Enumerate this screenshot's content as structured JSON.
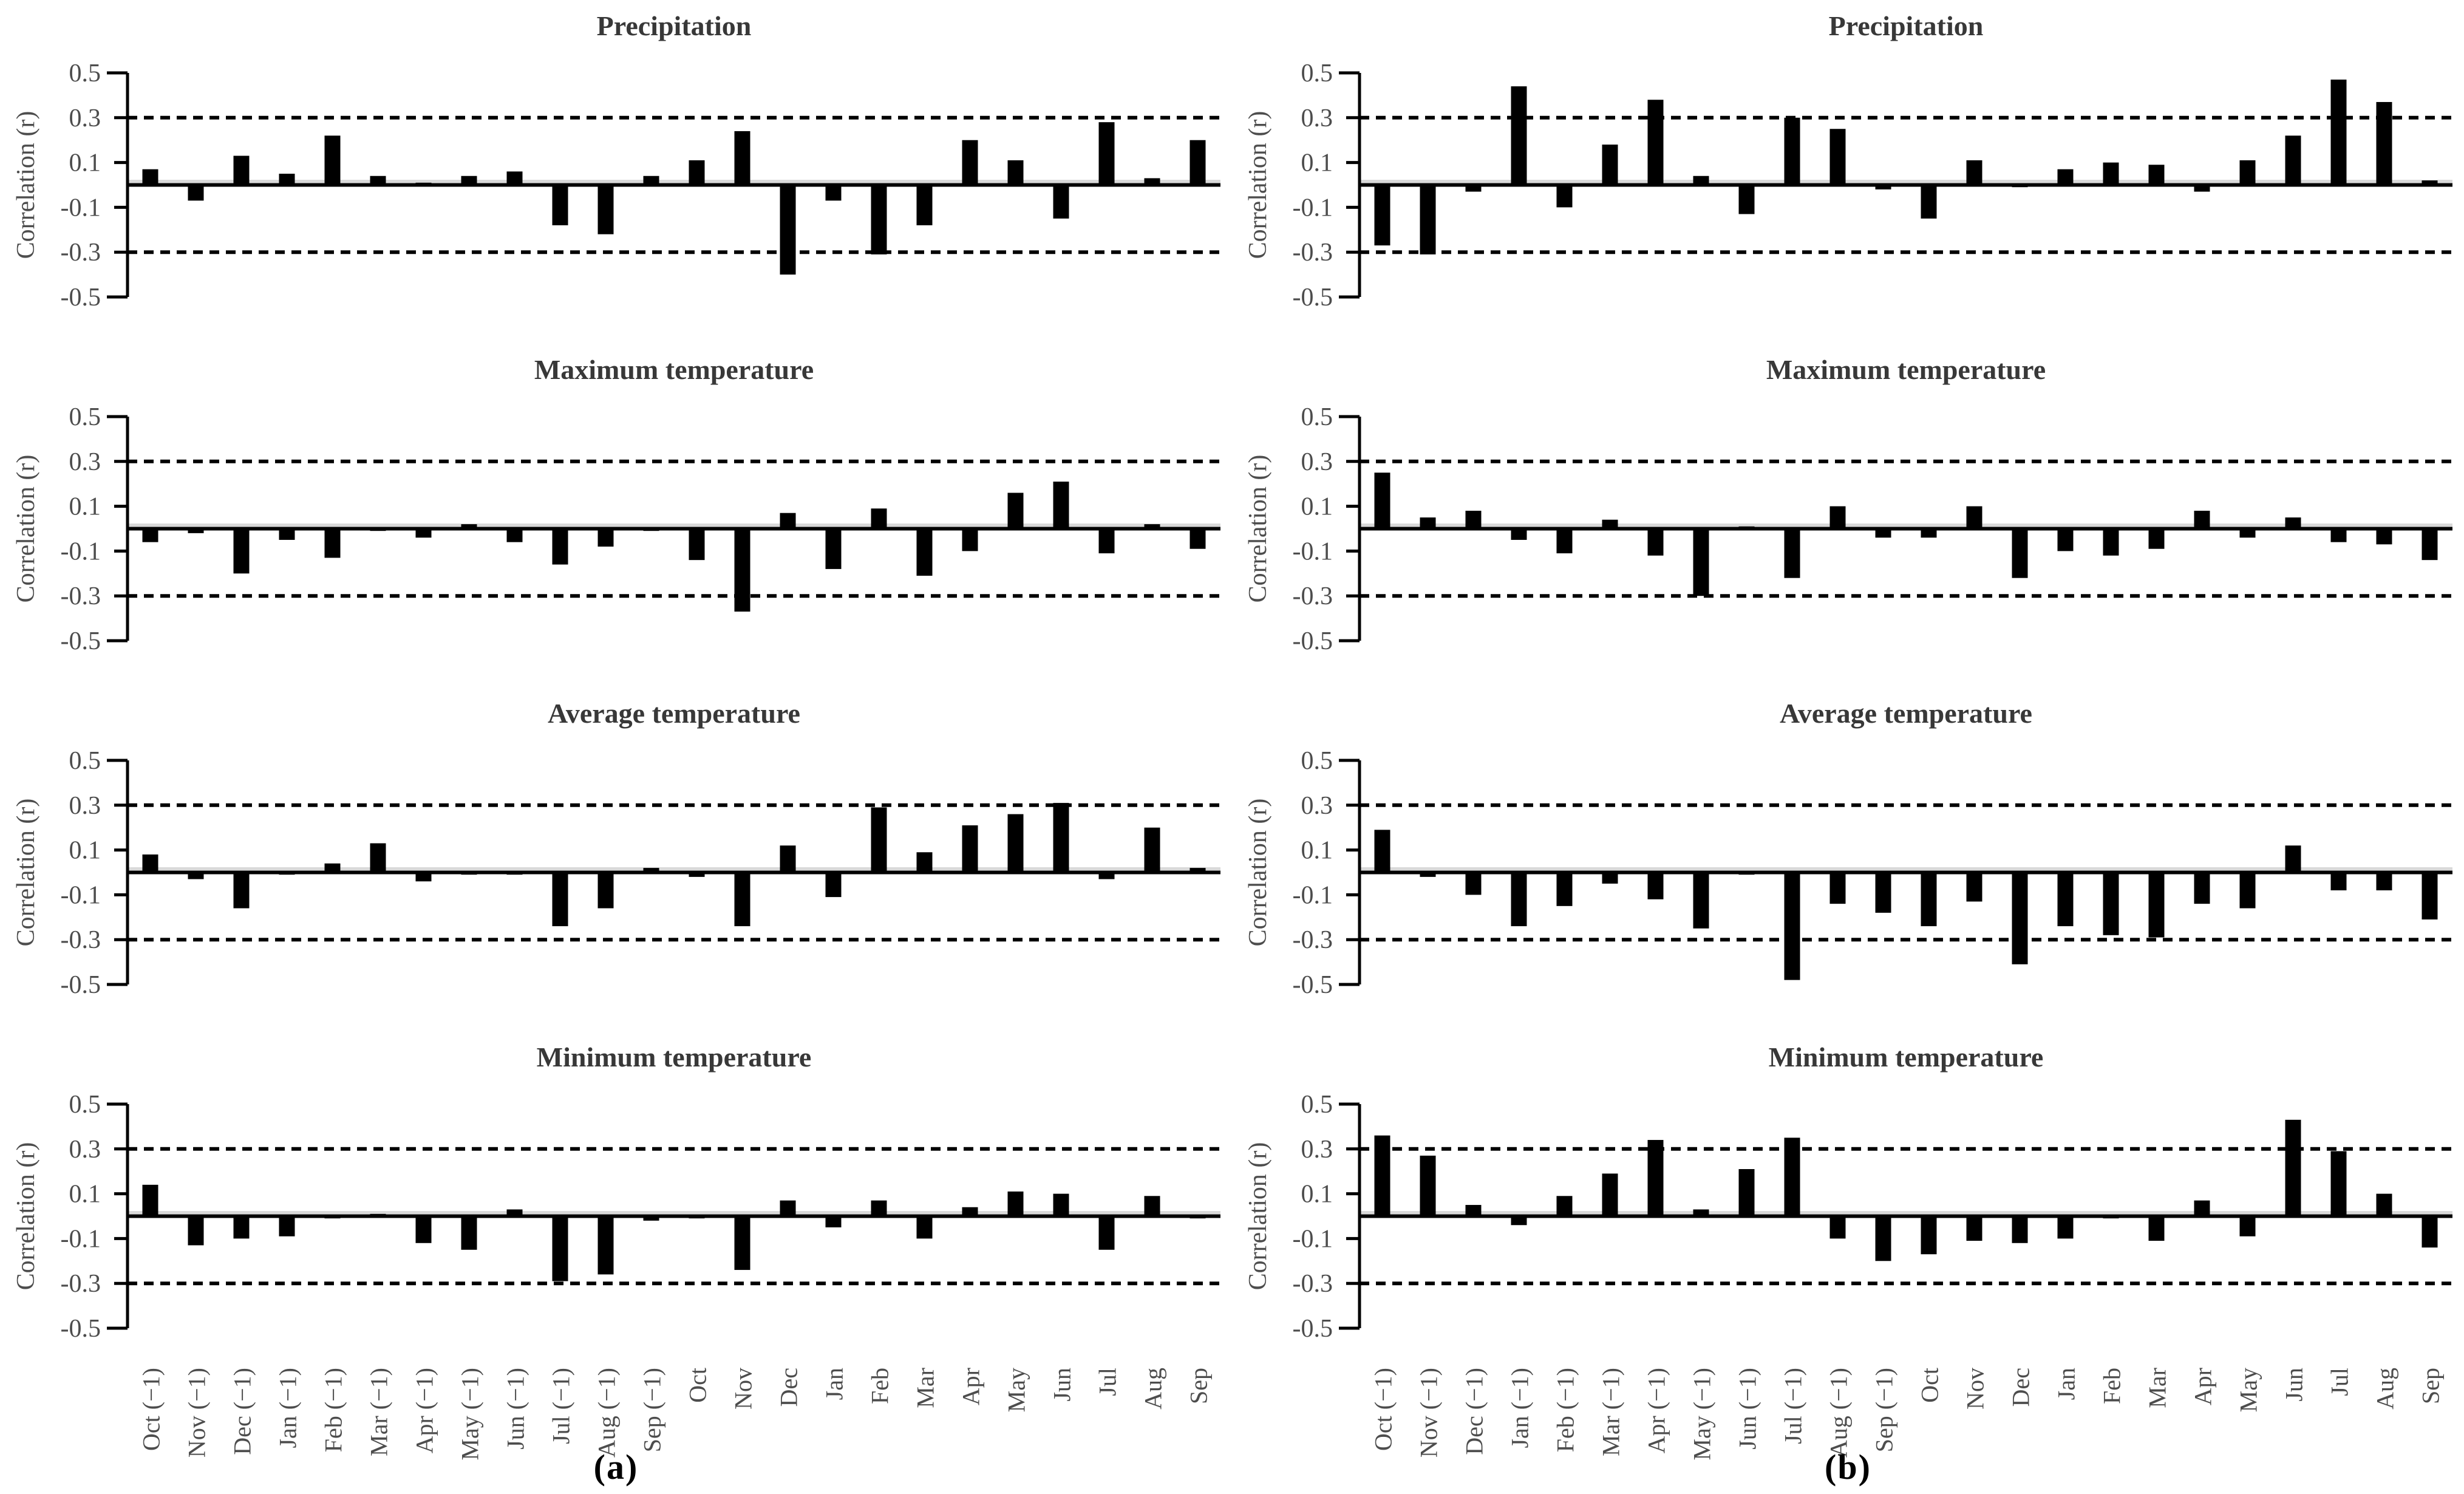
{
  "figure": {
    "y_axis_label": "Correlation (r)",
    "column_labels": [
      "(a)",
      "(b)"
    ],
    "colors": {
      "bar": "#000000",
      "axis": "#000000",
      "tick_text": "#4d4d4d",
      "title_text": "#383838",
      "zero_shadow": "#d9d9d9"
    }
  },
  "chart_data": [
    {
      "type": "bar",
      "panel": "a",
      "row": 0,
      "col": 0,
      "title": "Precipitation",
      "xlabel": "",
      "ylabel": "Correlation (r)",
      "ylim": [
        -0.5,
        0.5
      ],
      "y_ticks": [
        0.5,
        0.3,
        0.1,
        -0.1,
        -0.3,
        -0.5
      ],
      "y_tick_labels": [
        "0.5",
        "0.3",
        "0.1",
        "-0.1",
        "-0.3",
        "-0.5"
      ],
      "significance_lines": [
        0.3,
        -0.3
      ],
      "grid": false,
      "categories": [
        "Oct (−1)",
        "Nov (−1)",
        "Dec (−1)",
        "Jan (−1)",
        "Feb (−1)",
        "Mar (−1)",
        "Apr (−1)",
        "May (−1)",
        "Jun (−1)",
        "Jul (−1)",
        "Aug (−1)",
        "Sep (−1)",
        "Oct",
        "Nov",
        "Dec",
        "Jan",
        "Feb",
        "Mar",
        "Apr",
        "May",
        "Jun",
        "Jul",
        "Aug",
        "Sep"
      ],
      "values": [
        0.07,
        -0.07,
        0.13,
        0.05,
        0.22,
        0.04,
        0.01,
        0.04,
        0.06,
        -0.18,
        -0.22,
        0.04,
        0.11,
        0.24,
        -0.4,
        -0.07,
        -0.31,
        -0.18,
        0.2,
        0.11,
        -0.15,
        0.28,
        0.03,
        0.2
      ]
    },
    {
      "type": "bar",
      "panel": "b",
      "row": 0,
      "col": 1,
      "title": "Precipitation",
      "xlabel": "",
      "ylabel": "Correlation (r)",
      "ylim": [
        -0.5,
        0.5
      ],
      "y_ticks": [
        0.5,
        0.3,
        0.1,
        -0.1,
        -0.3,
        -0.5
      ],
      "y_tick_labels": [
        "0.5",
        "0.3",
        "0.1",
        "-0.1",
        "-0.3",
        "-0.5"
      ],
      "significance_lines": [
        0.3,
        -0.3
      ],
      "grid": false,
      "categories": [
        "Oct (−1)",
        "Nov (−1)",
        "Dec (−1)",
        "Jan (−1)",
        "Feb (−1)",
        "Mar (−1)",
        "Apr (−1)",
        "May (−1)",
        "Jun (−1)",
        "Jul (−1)",
        "Aug (−1)",
        "Sep (−1)",
        "Oct",
        "Nov",
        "Dec",
        "Jan",
        "Feb",
        "Mar",
        "Apr",
        "May",
        "Jun",
        "Jul",
        "Aug",
        "Sep"
      ],
      "values": [
        -0.27,
        -0.31,
        -0.03,
        0.44,
        -0.1,
        0.18,
        0.38,
        0.04,
        -0.13,
        0.3,
        0.25,
        -0.02,
        -0.15,
        0.11,
        -0.01,
        0.07,
        0.1,
        0.09,
        -0.03,
        0.11,
        0.22,
        0.47,
        0.37,
        0.02
      ]
    },
    {
      "type": "bar",
      "panel": "a",
      "row": 1,
      "col": 0,
      "title": "Maximum temperature",
      "xlabel": "",
      "ylabel": "Correlation (r)",
      "ylim": [
        -0.5,
        0.5
      ],
      "y_ticks": [
        0.5,
        0.3,
        0.1,
        -0.1,
        -0.3,
        -0.5
      ],
      "y_tick_labels": [
        "0.5",
        "0.3",
        "0.1",
        "-0.1",
        "-0.3",
        "-0.5"
      ],
      "significance_lines": [
        0.3,
        -0.3
      ],
      "grid": false,
      "categories": [
        "Oct (−1)",
        "Nov (−1)",
        "Dec (−1)",
        "Jan (−1)",
        "Feb (−1)",
        "Mar (−1)",
        "Apr (−1)",
        "May (−1)",
        "Jun (−1)",
        "Jul (−1)",
        "Aug (−1)",
        "Sep (−1)",
        "Oct",
        "Nov",
        "Dec",
        "Jan",
        "Feb",
        "Mar",
        "Apr",
        "May",
        "Jun",
        "Jul",
        "Aug",
        "Sep"
      ],
      "values": [
        -0.06,
        -0.02,
        -0.2,
        -0.05,
        -0.13,
        -0.01,
        -0.04,
        0.02,
        -0.06,
        -0.16,
        -0.08,
        -0.01,
        -0.14,
        -0.37,
        0.07,
        -0.18,
        0.09,
        -0.21,
        -0.1,
        0.16,
        0.21,
        -0.11,
        0.02,
        -0.09
      ]
    },
    {
      "type": "bar",
      "panel": "b",
      "row": 1,
      "col": 1,
      "title": "Maximum temperature",
      "xlabel": "",
      "ylabel": "Correlation (r)",
      "ylim": [
        -0.5,
        0.5
      ],
      "y_ticks": [
        0.5,
        0.3,
        0.1,
        -0.1,
        -0.3,
        -0.5
      ],
      "y_tick_labels": [
        "0.5",
        "0.3",
        "0.1",
        "-0.1",
        "-0.3",
        "-0.5"
      ],
      "significance_lines": [
        0.3,
        -0.3
      ],
      "grid": false,
      "categories": [
        "Oct (−1)",
        "Nov (−1)",
        "Dec (−1)",
        "Jan (−1)",
        "Feb (−1)",
        "Mar (−1)",
        "Apr (−1)",
        "May (−1)",
        "Jun (−1)",
        "Jul (−1)",
        "Aug (−1)",
        "Sep (−1)",
        "Oct",
        "Nov",
        "Dec",
        "Jan",
        "Feb",
        "Mar",
        "Apr",
        "May",
        "Jun",
        "Jul",
        "Aug",
        "Sep"
      ],
      "values": [
        0.25,
        0.05,
        0.08,
        -0.05,
        -0.11,
        0.04,
        -0.12,
        -0.3,
        0.01,
        -0.22,
        0.1,
        -0.04,
        -0.04,
        0.1,
        -0.22,
        -0.1,
        -0.12,
        -0.09,
        0.08,
        -0.04,
        0.05,
        -0.06,
        -0.07,
        -0.14
      ]
    },
    {
      "type": "bar",
      "panel": "a",
      "row": 2,
      "col": 0,
      "title": "Average temperature",
      "xlabel": "",
      "ylabel": "Correlation (r)",
      "ylim": [
        -0.5,
        0.5
      ],
      "y_ticks": [
        0.5,
        0.3,
        0.1,
        -0.1,
        -0.3,
        -0.5
      ],
      "y_tick_labels": [
        "0.5",
        "0.3",
        "0.1",
        "-0.1",
        "-0.3",
        "-0.5"
      ],
      "significance_lines": [
        0.3,
        -0.3
      ],
      "grid": false,
      "categories": [
        "Oct (−1)",
        "Nov (−1)",
        "Dec (−1)",
        "Jan (−1)",
        "Feb (−1)",
        "Mar (−1)",
        "Apr (−1)",
        "May (−1)",
        "Jun (−1)",
        "Jul (−1)",
        "Aug (−1)",
        "Sep (−1)",
        "Oct",
        "Nov",
        "Dec",
        "Jan",
        "Feb",
        "Mar",
        "Apr",
        "May",
        "Jun",
        "Jul",
        "Aug",
        "Sep"
      ],
      "values": [
        0.08,
        -0.03,
        -0.16,
        -0.01,
        0.04,
        0.13,
        -0.04,
        -0.01,
        -0.01,
        -0.24,
        -0.16,
        0.02,
        -0.02,
        -0.24,
        0.12,
        -0.11,
        0.29,
        0.09,
        0.21,
        0.26,
        0.31,
        -0.03,
        0.2,
        0.02
      ]
    },
    {
      "type": "bar",
      "panel": "b",
      "row": 2,
      "col": 1,
      "title": "Average temperature",
      "xlabel": "",
      "ylabel": "Correlation (r)",
      "ylim": [
        -0.5,
        0.5
      ],
      "y_ticks": [
        0.5,
        0.3,
        0.1,
        -0.1,
        -0.3,
        -0.5
      ],
      "y_tick_labels": [
        "0.5",
        "0.3",
        "0.1",
        "-0.1",
        "-0.3",
        "-0.5"
      ],
      "significance_lines": [
        0.3,
        -0.3
      ],
      "grid": false,
      "categories": [
        "Oct (−1)",
        "Nov (−1)",
        "Dec (−1)",
        "Jan (−1)",
        "Feb (−1)",
        "Mar (−1)",
        "Apr (−1)",
        "May (−1)",
        "Jun (−1)",
        "Jul (−1)",
        "Aug (−1)",
        "Sep (−1)",
        "Oct",
        "Nov",
        "Dec",
        "Jan",
        "Feb",
        "Mar",
        "Apr",
        "May",
        "Jun",
        "Jul",
        "Aug",
        "Sep"
      ],
      "values": [
        0.19,
        -0.02,
        -0.1,
        -0.24,
        -0.15,
        -0.05,
        -0.12,
        -0.25,
        -0.01,
        -0.48,
        -0.14,
        -0.18,
        -0.24,
        -0.13,
        -0.41,
        -0.24,
        -0.28,
        -0.29,
        -0.14,
        -0.16,
        0.12,
        -0.08,
        -0.08,
        -0.21
      ]
    },
    {
      "type": "bar",
      "panel": "a",
      "row": 3,
      "col": 0,
      "title": "Minimum temperature",
      "xlabel": "",
      "ylabel": "Correlation (r)",
      "ylim": [
        -0.5,
        0.5
      ],
      "y_ticks": [
        0.5,
        0.3,
        0.1,
        -0.1,
        -0.3,
        -0.5
      ],
      "y_tick_labels": [
        "0.5",
        "0.3",
        "0.1",
        "-0.1",
        "-0.3",
        "-0.5"
      ],
      "significance_lines": [
        0.3,
        -0.3
      ],
      "grid": false,
      "categories": [
        "Oct (−1)",
        "Nov (−1)",
        "Dec (−1)",
        "Jan (−1)",
        "Feb (−1)",
        "Mar (−1)",
        "Apr (−1)",
        "May (−1)",
        "Jun (−1)",
        "Jul (−1)",
        "Aug (−1)",
        "Sep (−1)",
        "Oct",
        "Nov",
        "Dec",
        "Jan",
        "Feb",
        "Mar",
        "Apr",
        "May",
        "Jun",
        "Jul",
        "Aug",
        "Sep"
      ],
      "values": [
        0.14,
        -0.13,
        -0.1,
        -0.09,
        -0.01,
        0.01,
        -0.12,
        -0.15,
        0.03,
        -0.29,
        -0.26,
        -0.02,
        -0.01,
        -0.24,
        0.07,
        -0.05,
        0.07,
        -0.1,
        0.04,
        0.11,
        0.1,
        -0.15,
        0.09,
        -0.01
      ]
    },
    {
      "type": "bar",
      "panel": "b",
      "row": 3,
      "col": 1,
      "title": "Minimum temperature",
      "xlabel": "",
      "ylabel": "Correlation (r)",
      "ylim": [
        -0.5,
        0.5
      ],
      "y_ticks": [
        0.5,
        0.3,
        0.1,
        -0.1,
        -0.3,
        -0.5
      ],
      "y_tick_labels": [
        "0.5",
        "0.3",
        "0.1",
        "-0.1",
        "-0.3",
        "-0.5"
      ],
      "significance_lines": [
        0.3,
        -0.3
      ],
      "grid": false,
      "categories": [
        "Oct (−1)",
        "Nov (−1)",
        "Dec (−1)",
        "Jan (−1)",
        "Feb (−1)",
        "Mar (−1)",
        "Apr (−1)",
        "May (−1)",
        "Jun (−1)",
        "Jul (−1)",
        "Aug (−1)",
        "Sep (−1)",
        "Oct",
        "Nov",
        "Dec",
        "Jan",
        "Feb",
        "Mar",
        "Apr",
        "May",
        "Jun",
        "Jul",
        "Aug",
        "Sep"
      ],
      "values": [
        0.36,
        0.27,
        0.05,
        -0.04,
        0.09,
        0.19,
        0.34,
        0.03,
        0.21,
        0.35,
        -0.1,
        -0.2,
        -0.17,
        -0.11,
        -0.12,
        -0.1,
        -0.01,
        -0.11,
        0.07,
        -0.09,
        0.43,
        0.29,
        0.1,
        -0.14
      ]
    }
  ]
}
